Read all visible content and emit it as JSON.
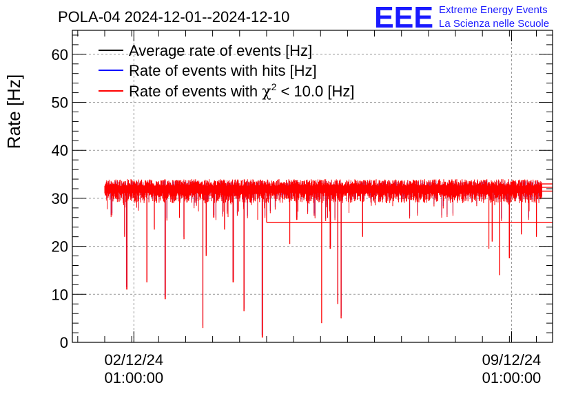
{
  "header": {
    "title": "POLA-04 2024-12-01--2024-12-10",
    "logo_text": "EEE",
    "org_line1": "Extreme Energy Events",
    "org_line2": "La Scienza nelle Scuole"
  },
  "colors": {
    "average": "#000000",
    "hits": "#0000ff",
    "chi2": "#ff0000",
    "logo": "#1a1aff",
    "grid": "#999999"
  },
  "chart_data": {
    "type": "line",
    "title": "POLA-04 2024-12-01--2024-12-10",
    "xlabel": "",
    "ylabel": "Rate [Hz]",
    "ylim": [
      0,
      65
    ],
    "yticks": [
      0,
      10,
      20,
      30,
      40,
      50,
      60
    ],
    "xlim_days": [
      0.9,
      9.8
    ],
    "xticks": [
      {
        "day": 2.04,
        "line1": "02/12/24",
        "line2": "01:00:00"
      },
      {
        "day": 9.04,
        "line1": "09/12/24",
        "line2": "01:00:00"
      }
    ],
    "grid": true,
    "legend_position": "top-left",
    "series": [
      {
        "name": "Average rate of events [Hz]",
        "color": "#000000",
        "level": 30.0,
        "from_day": 9.6
      },
      {
        "name": "Rate of events with hits [Hz]",
        "color": "#0000ff",
        "baseline": 32.0
      },
      {
        "name": "Rate of events with χ² < 10.0 [Hz]",
        "name_prefix": "Rate of events with ",
        "name_symbol": "χ",
        "name_sup": "2",
        "name_suffix": " < 10.0 [Hz]",
        "color": "#ff0000",
        "baseline": 32.0,
        "start_day": 1.5,
        "end_day": 9.6,
        "noise_low": 29.0,
        "noise_high": 34.0,
        "dips": [
          {
            "day": 1.87,
            "value": 22.0
          },
          {
            "day": 1.91,
            "value": 11.0
          },
          {
            "day": 2.28,
            "value": 12.5
          },
          {
            "day": 2.42,
            "value": 23.5
          },
          {
            "day": 2.62,
            "value": 9.0
          },
          {
            "day": 2.97,
            "value": 21.5
          },
          {
            "day": 3.32,
            "value": 3.0
          },
          {
            "day": 3.38,
            "value": 18.0
          },
          {
            "day": 3.52,
            "value": 26.0
          },
          {
            "day": 3.72,
            "value": 23.5
          },
          {
            "day": 3.88,
            "value": 12.5
          },
          {
            "day": 4.08,
            "value": 6.5
          },
          {
            "day": 4.42,
            "value": 1.0
          },
          {
            "day": 4.93,
            "value": 20.5
          },
          {
            "day": 5.52,
            "value": 4.0
          },
          {
            "day": 5.68,
            "value": 19.5
          },
          {
            "day": 5.82,
            "value": 8.0
          },
          {
            "day": 5.88,
            "value": 5.0
          },
          {
            "day": 6.28,
            "value": 22.0
          },
          {
            "day": 8.62,
            "value": 19.5
          },
          {
            "day": 8.68,
            "value": 21.0
          },
          {
            "day": 8.82,
            "value": 14.0
          },
          {
            "day": 9.0,
            "value": 17.5
          },
          {
            "day": 9.22,
            "value": 22.5
          },
          {
            "day": 9.5,
            "value": 22.0
          }
        ],
        "steps": [
          {
            "from_day": 4.5,
            "value": 25.0
          },
          {
            "from_day": 9.6,
            "value": 31.5
          },
          {
            "from_day": 9.6,
            "value": 32.3
          },
          {
            "from_day": 9.6,
            "value": 33.0
          }
        ]
      }
    ]
  }
}
